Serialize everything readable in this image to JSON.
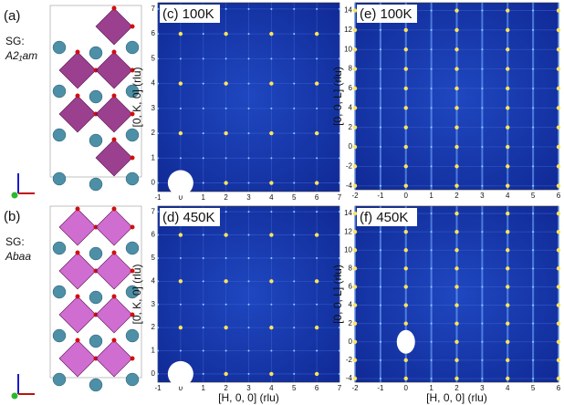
{
  "structures": [
    {
      "label": "(a)",
      "sg_prefix": "SG:",
      "space_group": "A2₁am"
    },
    {
      "label": "(b)",
      "sg_prefix": "SG:",
      "space_group": "Abaa"
    }
  ],
  "maps": [
    {
      "label": "(c) 100K",
      "y_label": "[0, K, 0] (rlu)",
      "x_ticks": [
        "-1",
        "0",
        "1",
        "2",
        "3",
        "4",
        "5",
        "6",
        "7"
      ],
      "y_ticks": [
        "0",
        "1",
        "2",
        "3",
        "4",
        "5",
        "6",
        "7"
      ]
    },
    {
      "label": "(d) 450K",
      "y_label": "[0, K, 0] (rlu)",
      "x_label": "[H, 0, 0] (rlu)",
      "x_ticks": [
        "-1",
        "0",
        "1",
        "2",
        "3",
        "4",
        "5",
        "6",
        "7"
      ],
      "y_ticks": [
        "0",
        "1",
        "2",
        "3",
        "4",
        "5",
        "6",
        "7"
      ]
    },
    {
      "label": "(e) 100K",
      "y_label": "[0, 0, L] (rlu)",
      "x_ticks": [
        "-2",
        "-1",
        "0",
        "1",
        "2",
        "3",
        "4",
        "5",
        "6"
      ],
      "y_ticks": [
        "-4",
        "-2",
        "0",
        "2",
        "4",
        "6",
        "8",
        "10",
        "12",
        "14"
      ]
    },
    {
      "label": "(f) 450K",
      "y_label": "[0, 0, L] (rlu)",
      "x_label": "[H, 0, 0] (rlu)",
      "x_ticks": [
        "-2",
        "-1",
        "0",
        "1",
        "2",
        "3",
        "4",
        "5",
        "6"
      ],
      "y_ticks": [
        "-4",
        "-2",
        "0",
        "2",
        "4",
        "6",
        "8",
        "10",
        "12",
        "14"
      ]
    }
  ]
}
